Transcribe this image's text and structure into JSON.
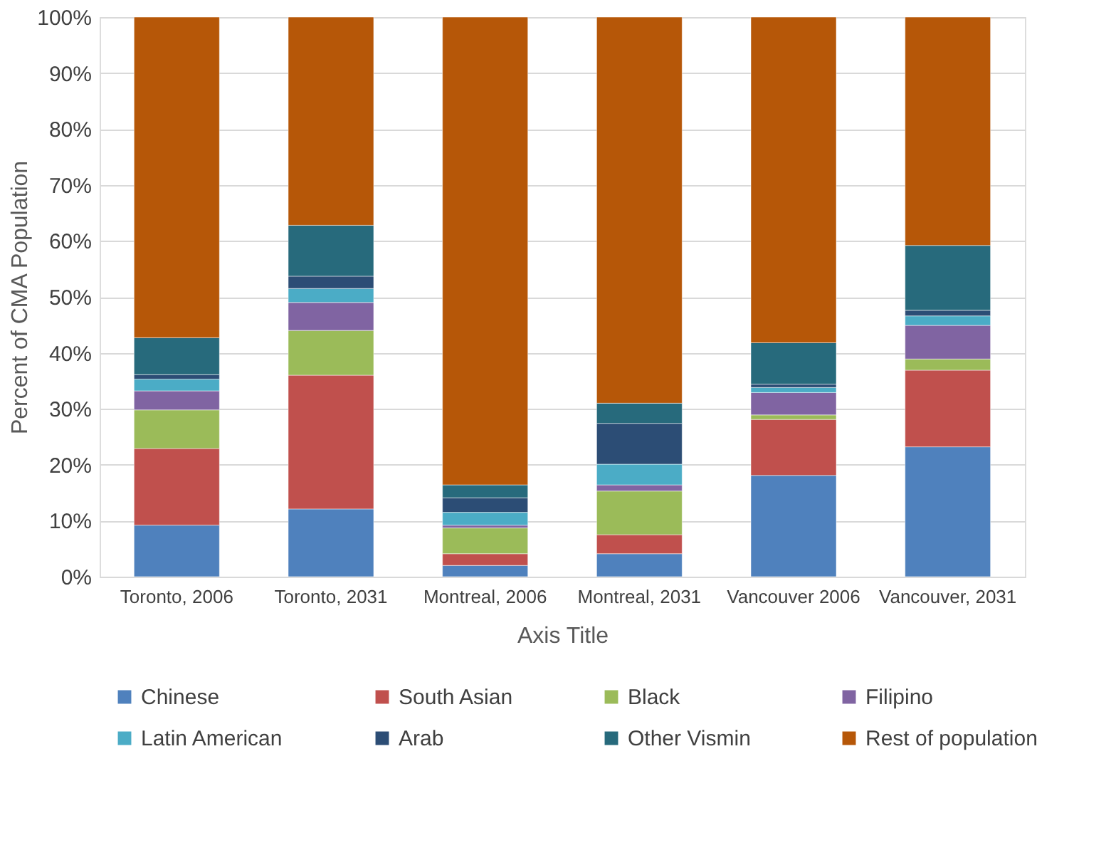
{
  "chart_data": {
    "type": "bar",
    "stacked": true,
    "xlabel": "Axis Title",
    "ylabel": "Percent of CMA Population",
    "categories": [
      "Toronto, 2006",
      "Toronto, 2031",
      "Montreal, 2006",
      "Montreal, 2031",
      "Vancouver 2006",
      "Vancouver, 2031"
    ],
    "series": [
      {
        "name": "Chinese",
        "color": "#4f81bd",
        "values": [
          9.2,
          12.1,
          2.0,
          4.1,
          18.1,
          23.2
        ]
      },
      {
        "name": "South Asian",
        "color": "#c0504d",
        "values": [
          13.7,
          23.9,
          2.1,
          3.4,
          10.0,
          13.7
        ]
      },
      {
        "name": "Black",
        "color": "#9bbb59",
        "values": [
          6.9,
          8.0,
          4.6,
          7.8,
          0.8,
          2.0
        ]
      },
      {
        "name": "Filipino",
        "color": "#8064a2",
        "values": [
          3.4,
          5.0,
          0.5,
          1.1,
          4.0,
          6.0
        ]
      },
      {
        "name": "Latin American",
        "color": "#4bacc6",
        "values": [
          2.1,
          2.5,
          2.3,
          3.7,
          0.9,
          1.7
        ]
      },
      {
        "name": "Arab",
        "color": "#2c4d75",
        "values": [
          0.8,
          2.2,
          2.6,
          7.3,
          0.6,
          1.0
        ]
      },
      {
        "name": "Other Vismin",
        "color": "#276a7c",
        "values": [
          6.6,
          9.1,
          2.3,
          3.6,
          7.4,
          11.6
        ]
      },
      {
        "name": "Rest of population",
        "color": "#b65708",
        "values": [
          57.3,
          37.2,
          83.6,
          69.0,
          58.2,
          40.8
        ]
      }
    ],
    "ylim": [
      0,
      100
    ],
    "yticks": [
      {
        "value": 0,
        "label": "0%"
      },
      {
        "value": 10,
        "label": "10%"
      },
      {
        "value": 20,
        "label": "20%"
      },
      {
        "value": 30,
        "label": "30%"
      },
      {
        "value": 40,
        "label": "40%"
      },
      {
        "value": 50,
        "label": "50%"
      },
      {
        "value": 60,
        "label": "60%"
      },
      {
        "value": 70,
        "label": "70%"
      },
      {
        "value": 80,
        "label": "80%"
      },
      {
        "value": 90,
        "label": "90%"
      },
      {
        "value": 100,
        "label": "100%"
      }
    ],
    "grid": "y",
    "legend": "bottom"
  }
}
